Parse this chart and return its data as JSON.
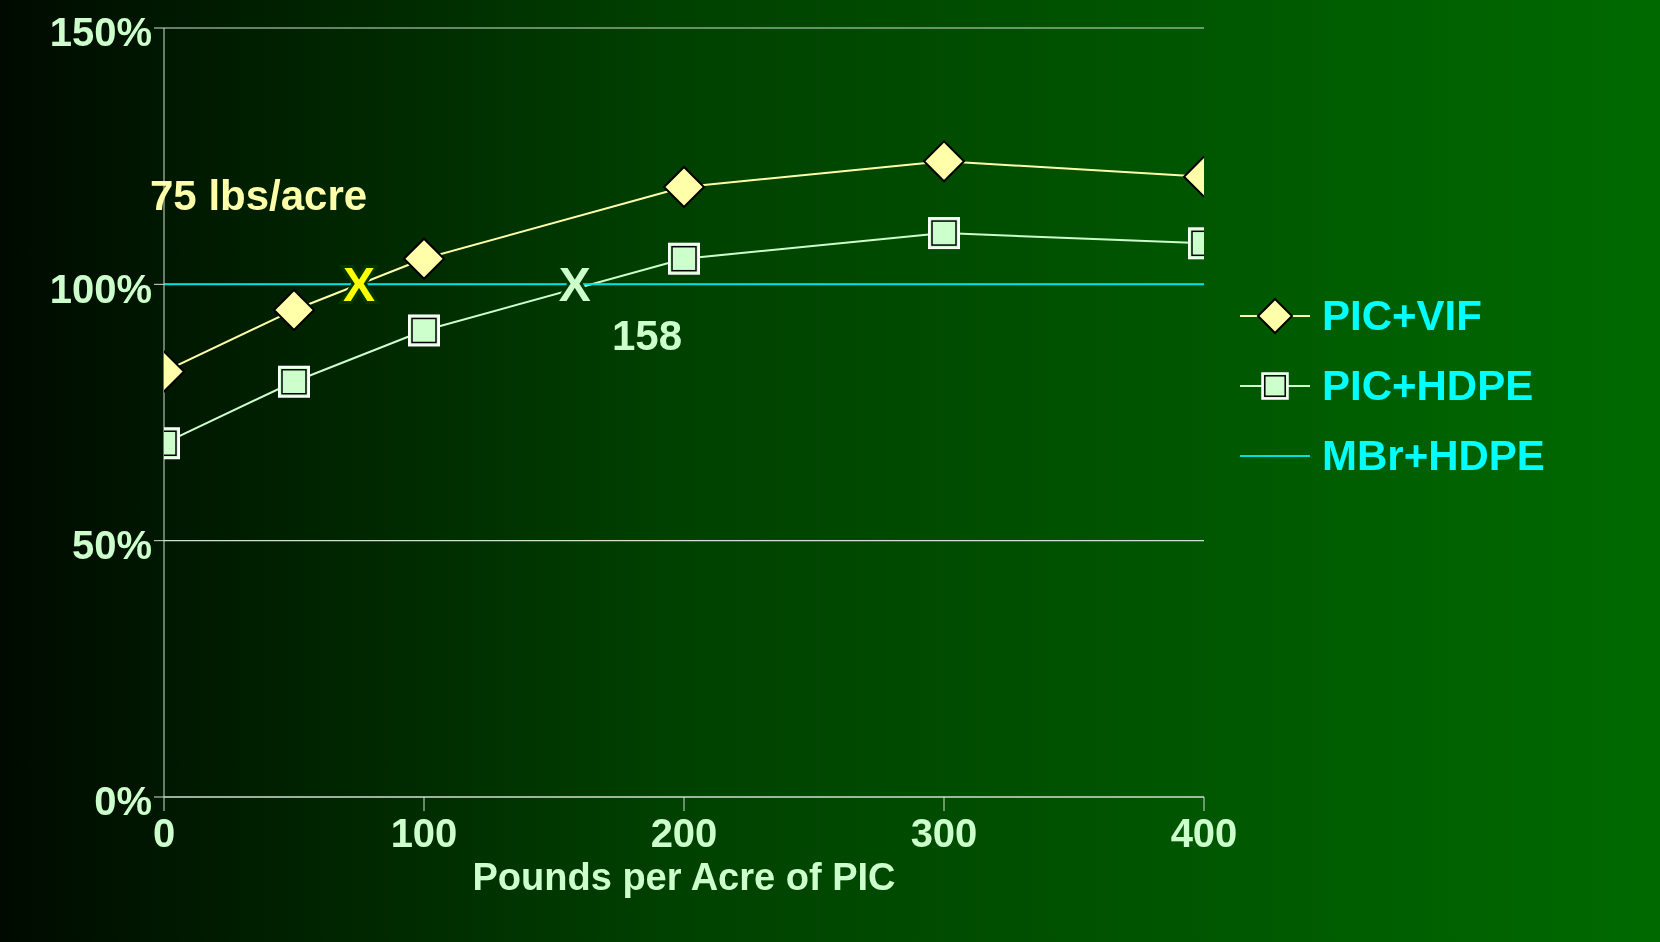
{
  "chart_data": {
    "type": "line",
    "xlabel": "Pounds per Acre of PIC",
    "xlim": [
      0,
      400
    ],
    "xticks": [
      0,
      100,
      200,
      300,
      400
    ],
    "ylim": [
      0,
      150
    ],
    "yticks": [
      {
        "value": 0,
        "label": "0%"
      },
      {
        "value": 50,
        "label": "50%"
      },
      {
        "value": 100,
        "label": "100%"
      },
      {
        "value": 150,
        "label": "150%"
      }
    ],
    "grid": "y",
    "legend": "right",
    "series": [
      {
        "name": "PIC+VIF",
        "color": "#ffffaa",
        "marker": "diamond",
        "x": [
          0,
          50,
          100,
          200,
          300,
          400
        ],
        "values": [
          83,
          95,
          105,
          119,
          124,
          121
        ]
      },
      {
        "name": "PIC+HDPE",
        "color": "#ccffcc",
        "marker": "square",
        "x": [
          0,
          50,
          100,
          200,
          300,
          400
        ],
        "values": [
          69,
          81,
          91,
          105,
          110,
          108
        ]
      },
      {
        "name": "MBr+HDPE",
        "color": "#00e0e0",
        "marker": "none",
        "x": [
          0,
          400
        ],
        "values": [
          100,
          100
        ]
      }
    ],
    "annotations": [
      "75 lbs/acre",
      {
        "text": "X",
        "x": 75,
        "y": 100
      },
      {
        "text": "X",
        "x": 158,
        "y": 100
      },
      "158"
    ]
  }
}
